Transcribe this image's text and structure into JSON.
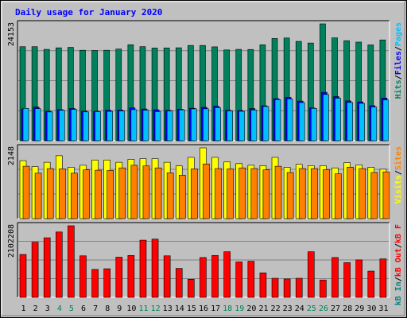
{
  "chart_data": {
    "type": "bar",
    "title": "Daily usage for January 2020",
    "days": [
      "1",
      "2",
      "3",
      "4",
      "5",
      "6",
      "7",
      "8",
      "9",
      "10",
      "11",
      "12",
      "13",
      "14",
      "15",
      "16",
      "17",
      "18",
      "19",
      "20",
      "21",
      "22",
      "23",
      "24",
      "25",
      "26",
      "27",
      "28",
      "29",
      "30",
      "31"
    ],
    "weekend_days": [
      4,
      5,
      11,
      12,
      18,
      19,
      25,
      26
    ],
    "colors": {
      "hits": "#00805c",
      "files": "#0000ff",
      "pages": "#00c0ff",
      "visits": "#ffff00",
      "sites": "#ff8000",
      "kbin": "#008080",
      "kbout": "#ff0000",
      "frame_bg": "#c0c0c0",
      "plot_bg": "#c0c0c0",
      "title": "#0000ff",
      "weekday_label": "#000000",
      "weekend_label": "#00805c"
    },
    "panels": [
      {
        "id": "top",
        "scale_label": "24153",
        "ymax": 24153,
        "legend": [
          {
            "label": "Hits",
            "color_key": "hits"
          },
          {
            "label": "/",
            "color_key": "sep"
          },
          {
            "label": "Files",
            "color_key": "files"
          },
          {
            "label": "/",
            "color_key": "sep"
          },
          {
            "label": "Pages",
            "color_key": "pages"
          }
        ],
        "series": [
          {
            "name": "Hits",
            "color_key": "hits",
            "values": [
              19430,
              19430,
              18880,
              19200,
              19300,
              18700,
              18650,
              18700,
              18940,
              19840,
              19440,
              19160,
              19180,
              19210,
              19690,
              19690,
              19400,
              18760,
              18880,
              18860,
              19830,
              21130,
              21230,
              20530,
              20190,
              24153,
              21260,
              20670,
              20380,
              19800,
              20830
            ]
          },
          {
            "name": "Files",
            "color_key": "files",
            "values": [
              6570,
              6960,
              6100,
              6420,
              6660,
              6120,
              6090,
              6330,
              6350,
              6790,
              6560,
              6400,
              6270,
              6510,
              6710,
              6900,
              7140,
              6310,
              6250,
              6640,
              7220,
              8690,
              8960,
              8200,
              6780,
              10000,
              9120,
              8230,
              8040,
              7240,
              8820
            ]
          },
          {
            "name": "Pages",
            "color_key": "pages",
            "values": [
              6690,
              6630,
              5940,
              6290,
              6480,
              5950,
              6000,
              6060,
              6150,
              6420,
              6310,
              6020,
              6150,
              6380,
              6590,
              6590,
              6820,
              6170,
              6080,
              6350,
              7080,
              8480,
              8630,
              7880,
              6680,
              9560,
              8790,
              7900,
              7720,
              6970,
              8420
            ]
          }
        ]
      },
      {
        "id": "middle",
        "scale_label": "2148",
        "ymax": 2148,
        "legend": [
          {
            "label": "Visits",
            "color_key": "visits"
          },
          {
            "label": "/",
            "color_key": "sep"
          },
          {
            "label": "Sites",
            "color_key": "sites"
          }
        ],
        "series": [
          {
            "name": "Visits",
            "color_key": "visits",
            "values": [
              1760,
              1580,
              1710,
              1910,
              1560,
              1620,
              1780,
              1780,
              1710,
              1800,
              1820,
              1820,
              1710,
              1600,
              1860,
              2148,
              1860,
              1720,
              1670,
              1620,
              1610,
              1860,
              1560,
              1650,
              1610,
              1610,
              1540,
              1700,
              1630,
              1560,
              1500
            ]
          },
          {
            "name": "Sites",
            "color_key": "sites",
            "values": [
              1590,
              1380,
              1520,
              1510,
              1380,
              1480,
              1470,
              1460,
              1540,
              1620,
              1600,
              1540,
              1390,
              1320,
              1510,
              1660,
              1520,
              1510,
              1540,
              1520,
              1480,
              1590,
              1400,
              1520,
              1520,
              1490,
              1360,
              1560,
              1520,
              1400,
              1420
            ]
          }
        ]
      },
      {
        "id": "bottom",
        "scale_label": "2102208",
        "ymax": 2102208,
        "legend": [
          {
            "label": "kB In",
            "color_key": "kbin"
          },
          {
            "label": "/",
            "color_key": "sep"
          },
          {
            "label": "kB Out",
            "color_key": "kbout"
          },
          {
            "label": "/",
            "color_key": "sep"
          },
          {
            "label": "kB F",
            "color_key": "kbout"
          }
        ],
        "series": [
          {
            "name": "kB Out",
            "color_key": "kbout",
            "values": [
              1260000,
              1620000,
              1750000,
              1920000,
              2102208,
              1220000,
              820000,
              840000,
              1180000,
              1230000,
              1680000,
              1710000,
              1220000,
              850000,
              530000,
              1170000,
              1230000,
              1340000,
              1040000,
              1060000,
              720000,
              560000,
              540000,
              560000,
              1340000,
              510000,
              1170000,
              1020000,
              1100000,
              770000,
              1130000
            ]
          }
        ]
      }
    ]
  }
}
